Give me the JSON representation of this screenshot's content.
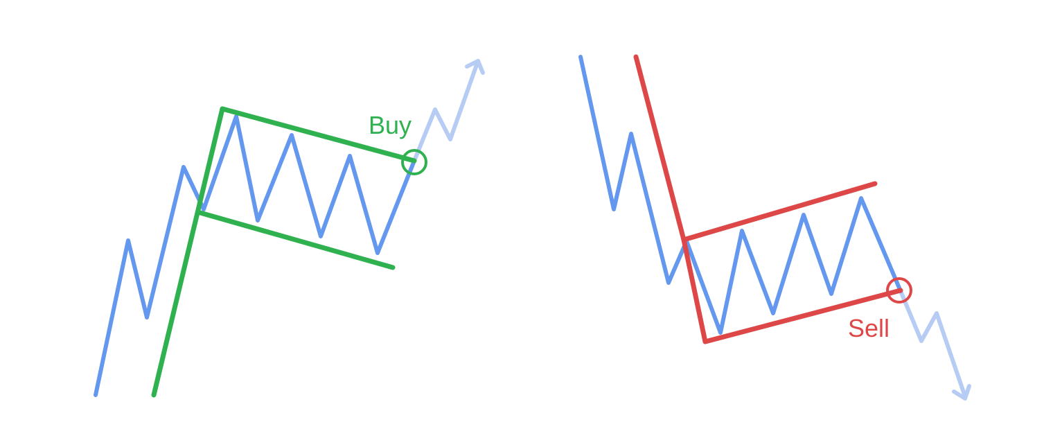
{
  "colors": {
    "price": "#6497ee",
    "price_faded": "#b6ccf4",
    "bull": "#2fb14f",
    "bear": "#de4747",
    "background": "#ffffff"
  },
  "bull_flag": {
    "signal_label": "Buy"
  },
  "bear_flag": {
    "signal_label": "Sell"
  }
}
